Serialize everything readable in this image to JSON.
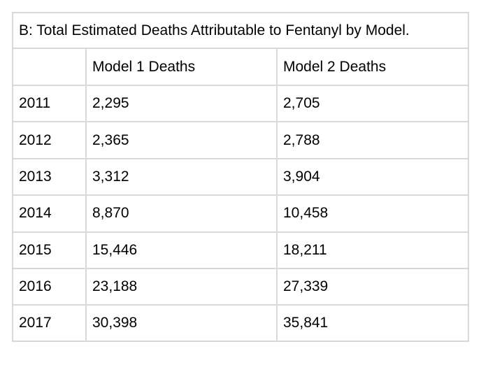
{
  "chart_data": {
    "type": "table",
    "title": "B: Total Estimated Deaths Attributable to Fentanyl by Model.",
    "columns": [
      "",
      "Model 1 Deaths",
      "Model 2 Deaths"
    ],
    "rows": [
      [
        "2011",
        "2,295",
        "2,705"
      ],
      [
        "2012",
        "2,365",
        "2,788"
      ],
      [
        "2013",
        "3,312",
        "3,904"
      ],
      [
        "2014",
        "8,870",
        "10,458"
      ],
      [
        "2015",
        "15,446",
        "18,211"
      ],
      [
        "2016",
        "23,188",
        "27,339"
      ],
      [
        "2017",
        "30,398",
        "35,841"
      ]
    ],
    "series": [
      {
        "name": "Model 1 Deaths",
        "x": [
          2011,
          2012,
          2013,
          2014,
          2015,
          2016,
          2017
        ],
        "values": [
          2295,
          2365,
          3312,
          8870,
          15446,
          23188,
          30398
        ]
      },
      {
        "name": "Model 2 Deaths",
        "x": [
          2011,
          2012,
          2013,
          2014,
          2015,
          2016,
          2017
        ],
        "values": [
          2705,
          2788,
          3904,
          10458,
          18211,
          27339,
          35841
        ]
      }
    ]
  }
}
